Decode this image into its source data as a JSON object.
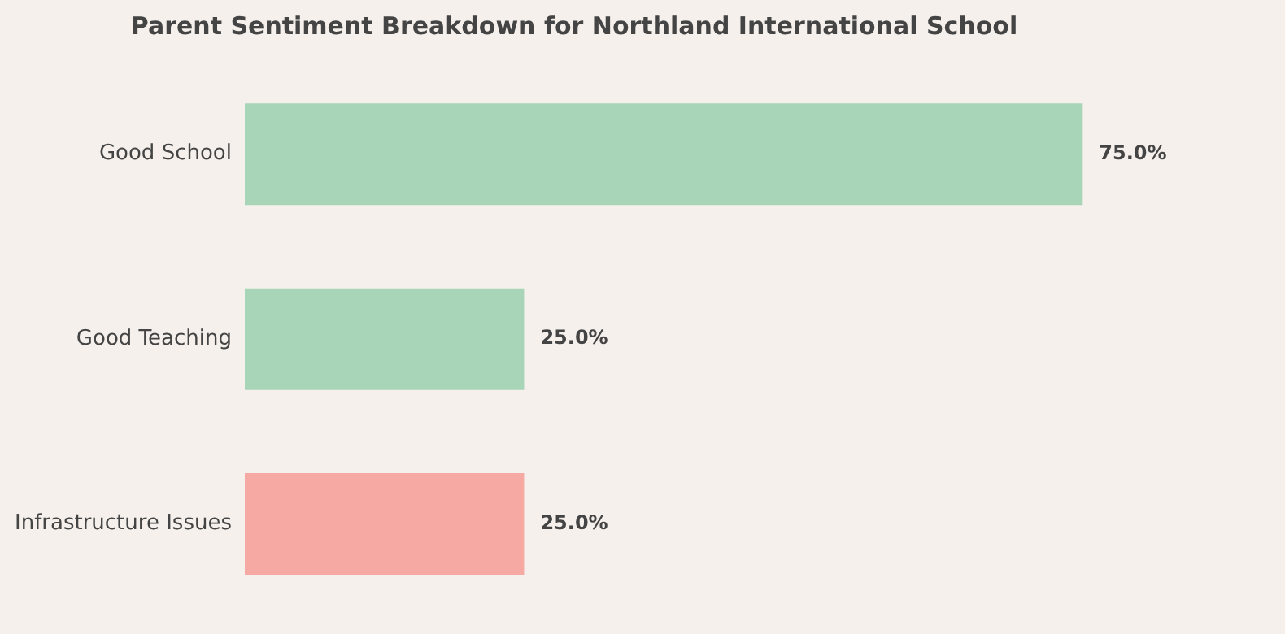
{
  "chart_data": {
    "type": "bar",
    "orientation": "horizontal",
    "title": "Parent Sentiment Breakdown for Northland International School",
    "categories": [
      "Good School",
      "Good Teaching",
      "Infrastructure Issues"
    ],
    "values": [
      75,
      25,
      25
    ],
    "colors": [
      "#a8d5b8",
      "#a8d5b8",
      "#f6a8a2"
    ],
    "value_labels": [
      "75.0%",
      "25.0%",
      "25.0%"
    ],
    "legend": false
  }
}
